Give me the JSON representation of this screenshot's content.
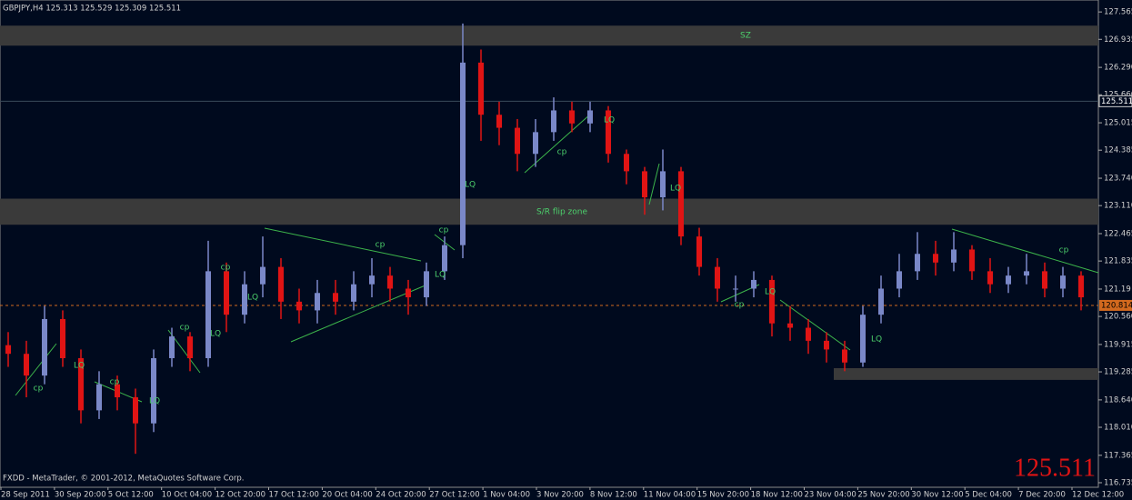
{
  "chart_data": {
    "type": "candlestick",
    "title": "GBPJPY,H4 125.313 125.529 125.309 125.511",
    "footer": "FXDD - MetaTrader, © 2001-2012, MetaQuotes Software Corp.",
    "bull_color": "#7a88c8",
    "bear_color": "#e01414",
    "zone_color": "#3a3a3a",
    "ylim": [
      116.63,
      127.84
    ],
    "yticks": [
      127.565,
      126.935,
      {
        "value": 126.29,
        "label": "126.290"
      },
      {
        "value": 125.66,
        "label": "125.660"
      },
      125.015,
      124.385,
      {
        "value": 123.74,
        "label": "123.740"
      },
      {
        "value": 123.11,
        "label": "123.110"
      },
      122.465,
      121.835,
      121.19,
      {
        "value": 120.56,
        "label": "120.560"
      },
      119.915,
      119.285,
      {
        "value": 118.64,
        "label": "118.640"
      },
      {
        "value": 118.01,
        "label": "118.010"
      },
      117.365,
      116.735
    ],
    "xtick_labels": [
      "28 Sep 2011",
      "30 Sep 20:00",
      "5 Oct 12:00",
      "10 Oct 04:00",
      "12 Oct 20:00",
      "17 Oct 12:00",
      "20 Oct 04:00",
      "24 Oct 20:00",
      "27 Oct 12:00",
      "1 Nov 04:00",
      "3 Nov 20:00",
      "8 Nov 12:00",
      "11 Nov 04:00",
      "15 Nov 20:00",
      "18 Nov 12:00",
      "23 Nov 04:00",
      "25 Nov 20:00",
      "30 Nov 12:00",
      "5 Dec 04:00",
      "7 Dec 20:00",
      "12 Dec 12:00"
    ],
    "open": [
      119.9,
      119.7,
      119.2,
      120.5,
      119.6,
      118.4,
      119.0,
      118.7,
      118.1,
      119.6,
      120.1,
      119.6,
      121.6,
      120.6,
      121.3,
      121.7,
      120.9,
      120.7,
      121.1,
      120.9,
      121.3,
      121.5,
      121.2,
      121.0,
      121.6,
      122.2,
      126.4,
      125.2,
      124.9,
      124.3,
      124.8,
      125.3,
      125.0,
      125.3,
      124.3,
      123.9,
      123.3,
      123.9,
      122.4,
      121.7,
      121.2,
      121.2,
      121.4,
      120.4,
      120.3,
      120.0,
      119.8,
      119.5,
      120.6,
      121.2,
      121.6,
      122.0,
      121.8,
      122.1,
      121.6,
      121.3,
      121.5,
      121.6,
      121.2,
      121.5
    ],
    "high": [
      120.2,
      120.0,
      120.8,
      120.7,
      119.8,
      119.3,
      119.2,
      118.9,
      119.8,
      120.3,
      120.2,
      122.3,
      121.8,
      121.6,
      122.4,
      121.9,
      121.2,
      121.4,
      121.4,
      121.6,
      121.9,
      121.7,
      121.4,
      121.8,
      122.4,
      127.3,
      126.7,
      125.5,
      125.1,
      125.1,
      125.6,
      125.5,
      125.5,
      125.4,
      124.4,
      124.0,
      124.4,
      124.0,
      122.6,
      121.9,
      121.5,
      121.6,
      121.5,
      120.8,
      120.5,
      120.2,
      120.0,
      120.8,
      121.5,
      122.0,
      122.5,
      122.3,
      122.5,
      122.2,
      121.9,
      121.7,
      122.0,
      121.8,
      121.7,
      121.6
    ],
    "low": [
      119.4,
      118.7,
      119.0,
      119.4,
      118.1,
      118.2,
      118.4,
      117.4,
      117.9,
      119.4,
      119.3,
      119.4,
      120.2,
      120.4,
      121.0,
      120.5,
      120.4,
      120.4,
      120.6,
      120.7,
      121.0,
      120.9,
      120.6,
      120.8,
      121.4,
      121.9,
      124.6,
      124.5,
      123.9,
      124.0,
      124.6,
      124.8,
      124.8,
      124.1,
      123.6,
      122.9,
      123.0,
      122.2,
      121.5,
      120.9,
      120.9,
      121.0,
      120.1,
      120.0,
      119.7,
      119.5,
      119.3,
      119.4,
      120.4,
      121.0,
      121.4,
      121.5,
      121.6,
      121.4,
      121.1,
      121.1,
      121.3,
      121.0,
      121.0,
      120.7
    ],
    "close": [
      119.7,
      119.2,
      120.5,
      119.6,
      118.4,
      119.0,
      118.7,
      118.1,
      119.6,
      120.1,
      119.6,
      121.6,
      120.6,
      121.3,
      121.7,
      120.9,
      120.7,
      121.1,
      120.9,
      121.3,
      121.5,
      121.2,
      121.0,
      121.6,
      122.2,
      126.4,
      125.2,
      124.9,
      124.3,
      124.8,
      125.3,
      125.0,
      125.3,
      124.3,
      123.9,
      123.3,
      123.9,
      122.4,
      121.7,
      121.2,
      121.2,
      121.4,
      120.4,
      120.3,
      120.0,
      119.8,
      119.5,
      120.6,
      121.2,
      121.6,
      122.0,
      121.8,
      122.1,
      121.6,
      121.3,
      121.5,
      121.6,
      121.2,
      121.5,
      121.0
    ],
    "zones": [
      {
        "label": "SZ",
        "from": 126.79,
        "to": 127.25
      },
      {
        "label": "S/R flip zone",
        "from": 122.67,
        "to": 123.27
      },
      {
        "from": 119.1,
        "to": 119.37
      }
    ],
    "bid": 125.511,
    "last_line": 120.814,
    "annotations": [
      "LQ",
      "LQ",
      "LQ",
      "LQ",
      "LQ",
      "LQ",
      "LQ",
      "LQ",
      "LQ",
      "LQ",
      "cp",
      "cp",
      "cp",
      "cp",
      "cp",
      "cp",
      "cp",
      "cp",
      "cp"
    ]
  }
}
